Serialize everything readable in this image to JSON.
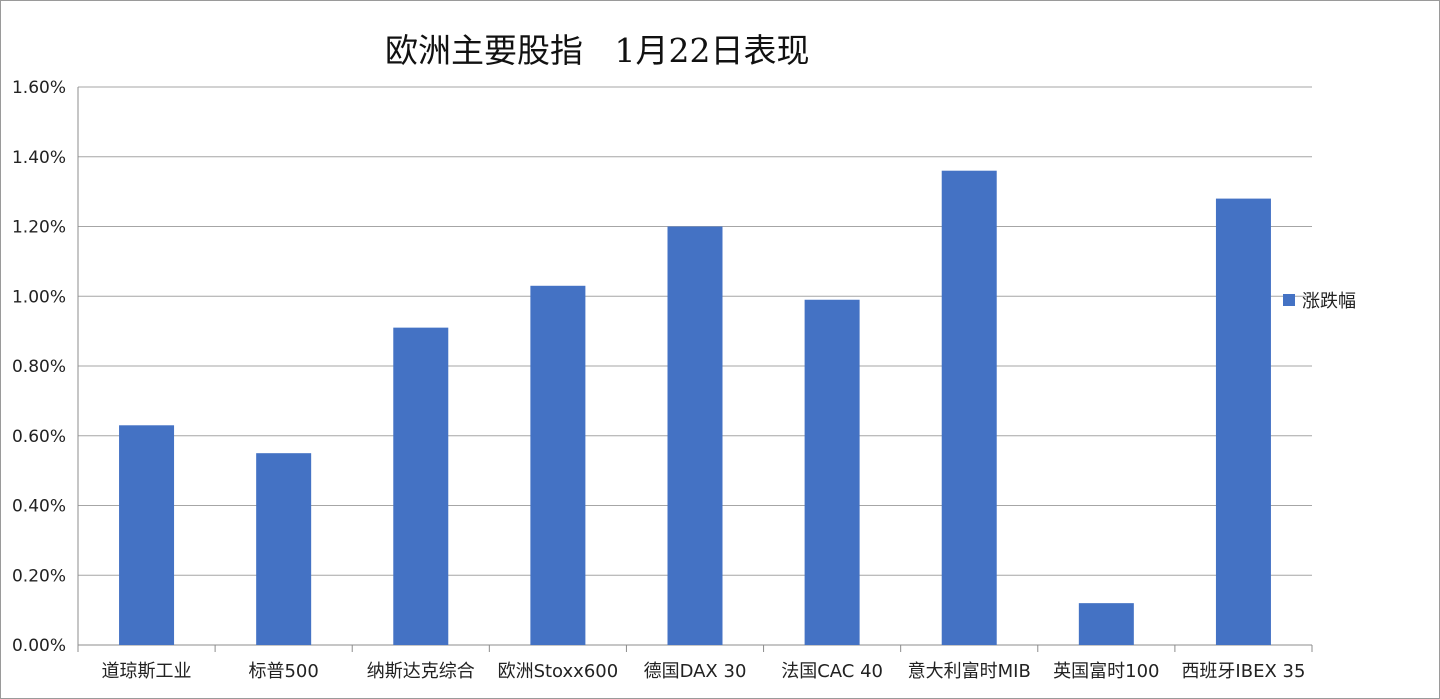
{
  "chart_data": {
    "type": "bar",
    "title": "欧洲主要股指   1月22日表现",
    "categories": [
      "道琼斯工业",
      "标普500",
      "纳斯达克综合",
      "欧洲Stoxx600",
      "德国DAX 30",
      "法国CAC 40",
      "意大利富时MIB",
      "英国富时100",
      "西班牙IBEX 35"
    ],
    "series": [
      {
        "name": "涨跌幅",
        "values": [
          0.63,
          0.55,
          0.91,
          1.03,
          1.2,
          0.99,
          1.36,
          0.12,
          1.28
        ],
        "color": "#4472C4"
      }
    ],
    "yticks": [
      "0.00%",
      "0.20%",
      "0.40%",
      "0.60%",
      "0.80%",
      "1.00%",
      "1.20%",
      "1.40%",
      "1.60%"
    ],
    "ylim": [
      0,
      1.6
    ],
    "grid": true,
    "legend_position": "right"
  }
}
